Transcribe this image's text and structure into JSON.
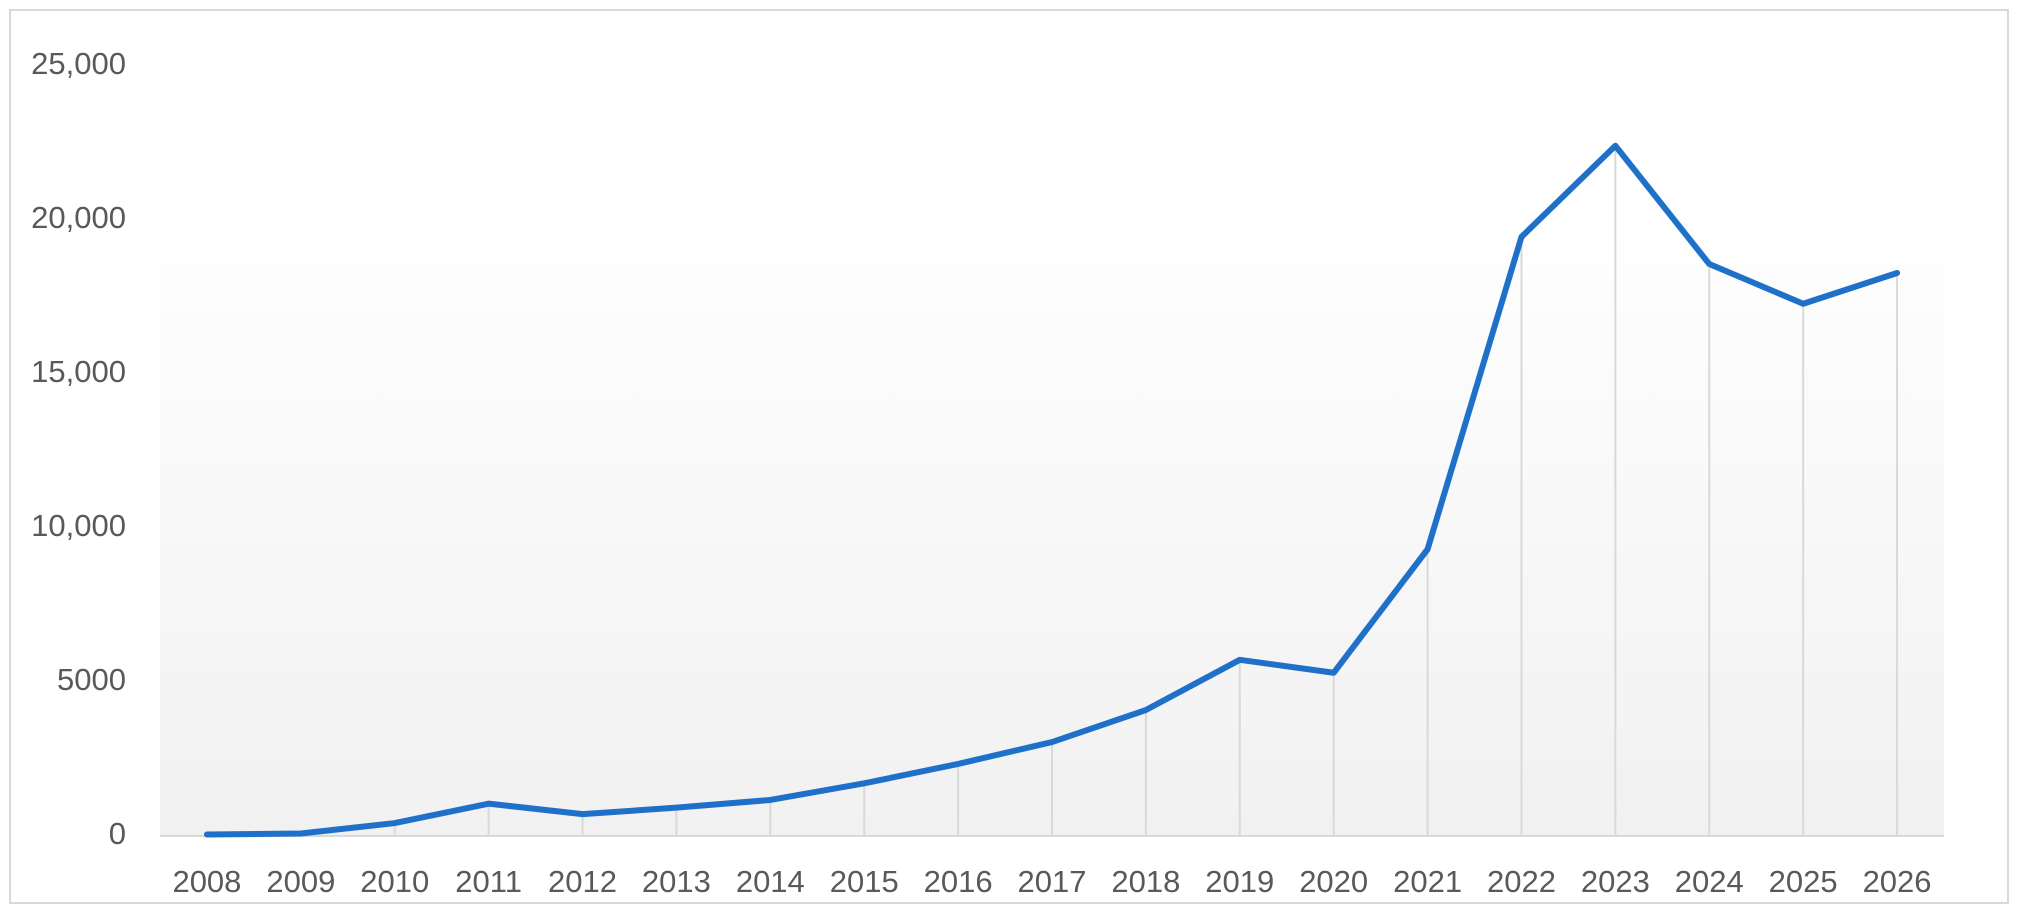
{
  "chart_data": {
    "type": "line",
    "categories": [
      "2008",
      "2009",
      "2010",
      "2011",
      "2012",
      "2013",
      "2014",
      "2015",
      "2016",
      "2017",
      "2018",
      "2019",
      "2020",
      "2021",
      "2022",
      "2023",
      "2024",
      "2025",
      "2026"
    ],
    "series": [
      {
        "color": "#1f70c8",
        "values": [
          50,
          80,
          420,
          1050,
          710,
          920,
          1170,
          1710,
          2340,
          3050,
          4090,
          5720,
          5300,
          9310,
          19450,
          22410,
          18570,
          17280,
          18280
        ]
      }
    ],
    "ylim": [
      0,
      25000
    ],
    "yticks": [
      0,
      5000,
      {
        "value": 10000,
        "label": "10,000"
      },
      {
        "value": 15000,
        "label": "15,000"
      },
      {
        "value": 20000,
        "label": "20,000"
      },
      {
        "value": 25000,
        "label": "25,000"
      }
    ],
    "grid": false,
    "drop_lines": true
  }
}
